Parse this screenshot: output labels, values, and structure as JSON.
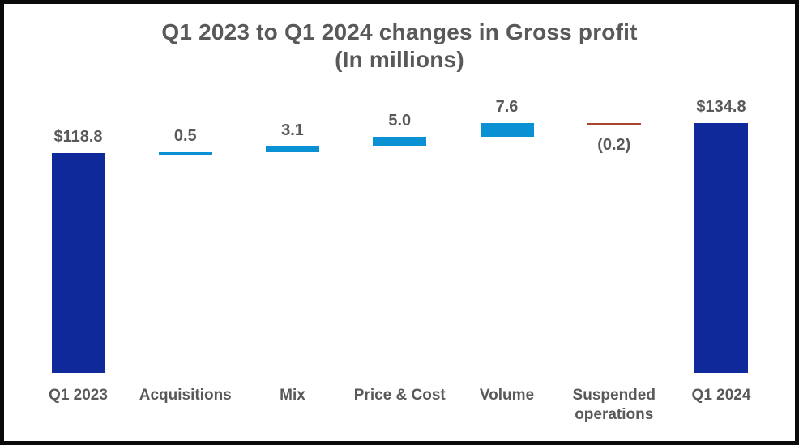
{
  "title": {
    "line1": "Q1 2023 to Q1 2024 changes in Gross profit",
    "line2": "(In millions)"
  },
  "chart_data": {
    "type": "bar",
    "subtype": "waterfall",
    "title": "Q1 2023 to Q1 2024 changes in Gross profit (In millions)",
    "xlabel": "",
    "ylabel": "",
    "ylim": [
      0,
      145
    ],
    "grid": false,
    "legend": false,
    "axes_visible": false,
    "categories": [
      "Q1 2023",
      "Acquisitions",
      "Mix",
      "Price & Cost",
      "Volume",
      "Suspended operations",
      "Q1 2024"
    ],
    "values": [
      118.8,
      0.5,
      3.1,
      5.0,
      7.6,
      -0.2,
      134.8
    ],
    "value_labels": [
      "$118.8",
      "0.5",
      "3.1",
      "5.0",
      "7.6",
      "(0.2)",
      "$134.8"
    ],
    "bar_types": [
      "total",
      "delta",
      "delta",
      "delta",
      "delta",
      "delta",
      "total"
    ],
    "cumulative_levels": [
      118.8,
      119.3,
      122.4,
      127.4,
      135.0,
      134.8,
      134.8
    ],
    "colors": {
      "total_bar": "#10299A",
      "positive_delta_bar": "#0991D3",
      "negative_delta_bar": "#A94431",
      "label_text": "#595959",
      "frame_border": "#0A0A0A",
      "background": "#FFFFFF"
    }
  }
}
